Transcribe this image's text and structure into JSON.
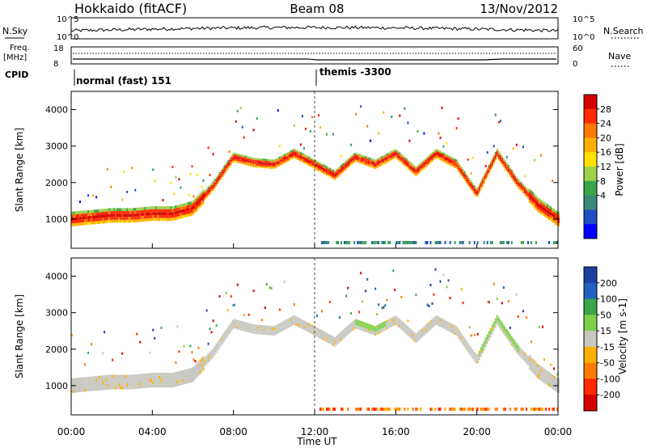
{
  "header": {
    "station": "Hokkaido (fitACF)",
    "beam": "Beam 08",
    "date": "13/Nov/2012"
  },
  "top_panels": {
    "nsky_label": "N.Sky",
    "nsky_ticks": [
      "10^5",
      "10^0"
    ],
    "nsearch_label": "N.Search",
    "nsearch_ticks": [
      "10^5",
      "10^0"
    ],
    "freq_label": "Freq.",
    "freq_unit": "[MHz]",
    "freq_ticks": [
      "18",
      "8"
    ],
    "nave_label": "Nave",
    "nave_ticks": [
      "60",
      "0"
    ],
    "cpid_label": "CPID",
    "cpid_modes": [
      {
        "name": "normal (fast) 151",
        "start_hour": 0
      },
      {
        "name": "themis -3300",
        "start_hour": 12
      }
    ]
  },
  "chart_data": [
    {
      "type": "heatmap",
      "name": "power-panel",
      "ylabel": "Slant Range [km]",
      "yticks": [
        "1000",
        "2000",
        "3000",
        "4000"
      ],
      "ylim": [
        200,
        4500
      ],
      "xlim": [
        0,
        24
      ],
      "xticks": [
        "00:00",
        "04:00",
        "08:00",
        "12:00",
        "16:00",
        "20:00",
        "00:00"
      ],
      "xlabel": "Time UT",
      "colorbar_label": "Power [dB]",
      "colorbar_ticks": [
        "28",
        "24",
        "20",
        "16",
        "12",
        "8",
        "4"
      ],
      "colorbar_colors": [
        "#d40000",
        "#ff2a00",
        "#ff7a00",
        "#ffb000",
        "#ffe000",
        "#9bd14b",
        "#3aa64a",
        "#3a8a7a",
        "#2050c0",
        "#0000ff"
      ],
      "echo_band": {
        "hours": [
          0,
          1,
          2,
          3,
          4,
          5,
          6,
          7,
          8,
          9,
          10,
          11,
          12,
          13,
          14,
          15,
          16,
          17,
          18,
          19,
          20,
          21,
          22,
          23,
          24
        ],
        "center_km": [
          1000,
          1050,
          1100,
          1100,
          1150,
          1150,
          1300,
          1900,
          2700,
          2550,
          2500,
          2800,
          2500,
          2200,
          2700,
          2500,
          2800,
          2300,
          2800,
          2500,
          1700,
          2800,
          2000,
          1400,
          1000
        ]
      }
    },
    {
      "type": "heatmap",
      "name": "velocity-panel",
      "ylabel": "Slant Range [km]",
      "yticks": [
        "1000",
        "2000",
        "3000",
        "4000"
      ],
      "ylim": [
        200,
        4500
      ],
      "xlim": [
        0,
        24
      ],
      "xticks": [
        "00:00",
        "04:00",
        "08:00",
        "12:00",
        "16:00",
        "20:00",
        "00:00"
      ],
      "xlabel": "Time UT",
      "colorbar_label": "Velocity [m s-1]",
      "colorbar_ticks": [
        "200",
        "100",
        "50",
        "15",
        "-15",
        "-50",
        "-100",
        "-200"
      ],
      "colorbar_colors": [
        "#1a3fa0",
        "#2060c0",
        "#3aa64a",
        "#7ed04b",
        "#c8c8c0",
        "#ffb000",
        "#ff7a00",
        "#ff2a00",
        "#d40000"
      ],
      "echo_band": {
        "hours": [
          0,
          1,
          2,
          3,
          4,
          5,
          6,
          7,
          8,
          9,
          10,
          11,
          12,
          13,
          14,
          15,
          16,
          17,
          18,
          19,
          20,
          21,
          22,
          23,
          24
        ],
        "center_km": [
          1000,
          1050,
          1100,
          1100,
          1150,
          1150,
          1300,
          1900,
          2700,
          2550,
          2500,
          2800,
          2500,
          2200,
          2700,
          2500,
          2800,
          2300,
          2800,
          2500,
          1700,
          2800,
          2000,
          1400,
          1000
        ]
      }
    }
  ]
}
